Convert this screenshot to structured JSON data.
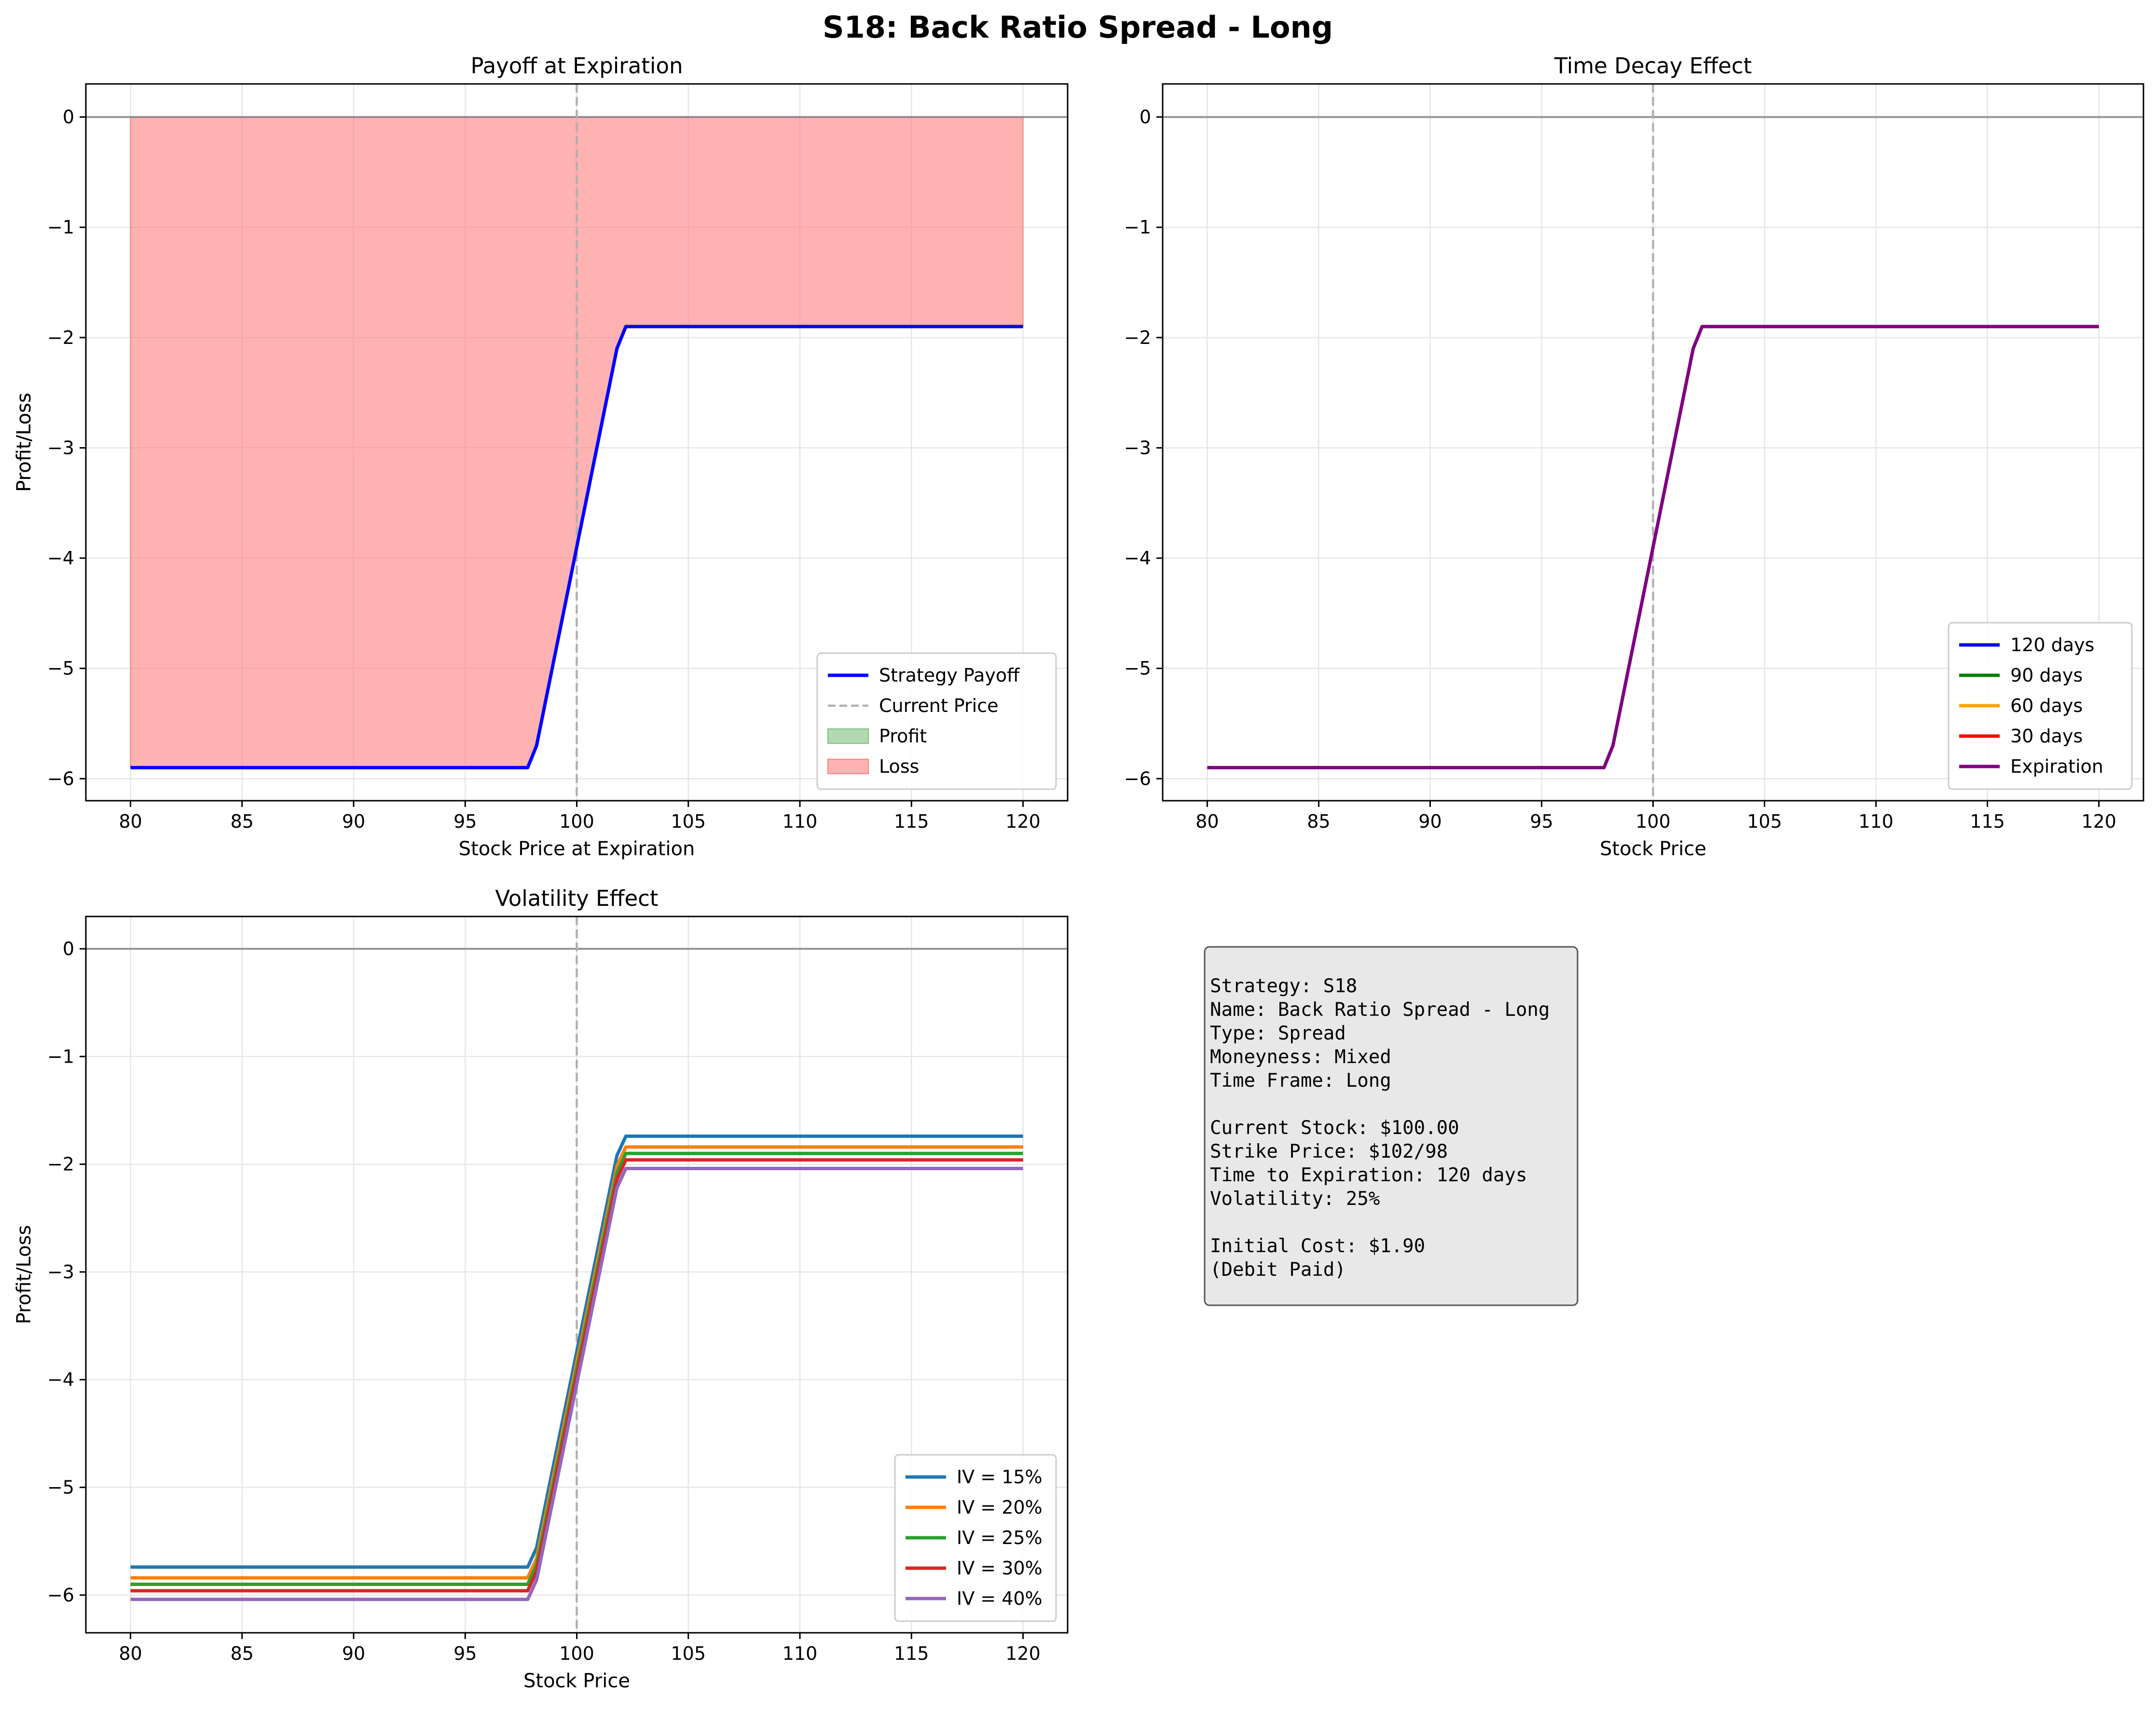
{
  "suptitle": "S18: Back Ratio Spread - Long",
  "chart_data": [
    {
      "type": "line",
      "title": "Payoff at Expiration",
      "xlabel": "Stock Price at Expiration",
      "ylabel": "Profit/Loss",
      "xlim": [
        78,
        122
      ],
      "ylim": [
        -6.2,
        0.3
      ],
      "xticks": [
        80,
        85,
        90,
        95,
        100,
        105,
        110,
        115,
        120
      ],
      "yticks": [
        0,
        -1,
        -2,
        -3,
        -4,
        -5,
        -6
      ],
      "ytick_labels": [
        "0",
        "−1",
        "−2",
        "−3",
        "−4",
        "−5",
        "−6"
      ],
      "grid": true,
      "current_price": 100,
      "legend_position": "lower-right",
      "legend": [
        "Strategy Payoff",
        "Current Price",
        "Profit",
        "Loss"
      ],
      "series": [
        {
          "name": "Strategy Payoff",
          "color": "#0000ff",
          "x": [
            80,
            97.8,
            98.2,
            101.8,
            102.2,
            120
          ],
          "y": [
            -5.9,
            -5.9,
            -5.7,
            -2.1,
            -1.9,
            -1.9
          ]
        }
      ],
      "fill": {
        "loss_color": "#ff7f7f",
        "profit_color": "#7fbf7f"
      }
    },
    {
      "type": "line",
      "title": "Time Decay Effect",
      "xlabel": "Stock Price",
      "ylabel": "Profit/Loss",
      "xlim": [
        78,
        122
      ],
      "ylim": [
        -6.2,
        0.3
      ],
      "xticks": [
        80,
        85,
        90,
        95,
        100,
        105,
        110,
        115,
        120
      ],
      "yticks": [
        0,
        -1,
        -2,
        -3,
        -4,
        -5,
        -6
      ],
      "ytick_labels": [
        "0",
        "−1",
        "−2",
        "−3",
        "−4",
        "−5",
        "−6"
      ],
      "grid": true,
      "current_price": 100,
      "legend_position": "lower-right",
      "legend": [
        "120 days",
        "90 days",
        "60 days",
        "30 days",
        "Expiration"
      ],
      "legend_colors": [
        "#0000ff",
        "#008000",
        "#ffa500",
        "#ff0000",
        "#800080"
      ],
      "series": [
        {
          "name": "Expiration",
          "color": "#800080",
          "x": [
            80,
            97.8,
            98.2,
            101.8,
            102.2,
            120
          ],
          "y": [
            -5.9,
            -5.9,
            -5.7,
            -2.1,
            -1.9,
            -1.9
          ]
        }
      ]
    },
    {
      "type": "line",
      "title": "Volatility Effect",
      "xlabel": "Stock Price",
      "ylabel": "Profit/Loss",
      "xlim": [
        78,
        122
      ],
      "ylim": [
        -6.35,
        0.3
      ],
      "xticks": [
        80,
        85,
        90,
        95,
        100,
        105,
        110,
        115,
        120
      ],
      "yticks": [
        0,
        -1,
        -2,
        -3,
        -4,
        -5,
        -6
      ],
      "ytick_labels": [
        "0",
        "−1",
        "−2",
        "−3",
        "−4",
        "−5",
        "−6"
      ],
      "grid": true,
      "current_price": 100,
      "legend_position": "lower-right",
      "legend": [
        "IV = 15%",
        "IV = 20%",
        "IV = 25%",
        "IV = 30%",
        "IV = 40%"
      ],
      "series": [
        {
          "name": "IV = 15%",
          "color": "#1f77b4",
          "x": [
            80,
            97.8,
            98.2,
            101.8,
            102.2,
            120
          ],
          "y": [
            -5.74,
            -5.74,
            -5.56,
            -1.92,
            -1.74,
            -1.74
          ]
        },
        {
          "name": "IV = 20%",
          "color": "#ff7f0e",
          "x": [
            80,
            97.8,
            98.2,
            101.8,
            102.2,
            120
          ],
          "y": [
            -5.84,
            -5.84,
            -5.66,
            -2.02,
            -1.84,
            -1.84
          ]
        },
        {
          "name": "IV = 25%",
          "color": "#2ca02c",
          "x": [
            80,
            97.8,
            98.2,
            101.8,
            102.2,
            120
          ],
          "y": [
            -5.9,
            -5.9,
            -5.72,
            -2.08,
            -1.9,
            -1.9
          ]
        },
        {
          "name": "IV = 30%",
          "color": "#d62728",
          "x": [
            80,
            97.8,
            98.2,
            101.8,
            102.2,
            120
          ],
          "y": [
            -5.96,
            -5.96,
            -5.78,
            -2.14,
            -1.96,
            -1.96
          ]
        },
        {
          "name": "IV = 40%",
          "color": "#9467bd",
          "x": [
            80,
            97.8,
            98.2,
            101.8,
            102.2,
            120
          ],
          "y": [
            -6.04,
            -6.04,
            -5.86,
            -2.22,
            -2.04,
            -2.04
          ]
        }
      ]
    }
  ],
  "info_box": {
    "lines": [
      "Strategy: S18",
      "Name: Back Ratio Spread - Long",
      "Type: Spread",
      "Moneyness: Mixed",
      "Time Frame: Long",
      "",
      "Current Stock: $100.00",
      "Strike Price: $102/98",
      "Time to Expiration: 120 days",
      "Volatility: 25%",
      "",
      "Initial Cost: $1.90",
      "(Debit Paid)"
    ]
  }
}
